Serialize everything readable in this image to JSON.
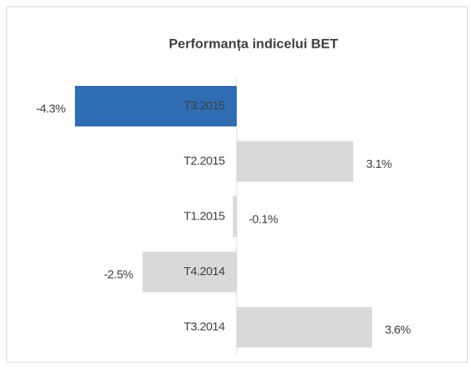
{
  "chart_data": {
    "type": "bar",
    "orientation": "horizontal",
    "title": "Performanța indicelui BET",
    "categories": [
      "T3.2015",
      "T2.2015",
      "T1.2015",
      "T4.2014",
      "T3.2014"
    ],
    "values": [
      -4.3,
      3.1,
      -0.1,
      -2.5,
      3.6
    ],
    "value_labels": [
      "-4.3%",
      "3.1%",
      "-0.1%",
      "-2.5%",
      "3.6%"
    ],
    "colors": [
      "#2e6db4",
      "#d9d9d9",
      "#d9d9d9",
      "#d9d9d9",
      "#d9d9d9"
    ]
  }
}
